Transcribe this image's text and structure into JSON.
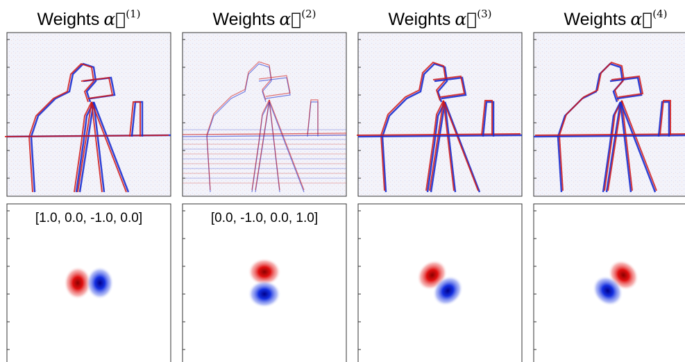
{
  "panels": [
    {
      "title": "Weights",
      "symbol": "α⃗",
      "superscript": "(1)",
      "annotation": "[1.0, 0.0, -1.0, 0.0]"
    },
    {
      "title": "Weights",
      "symbol": "α⃗",
      "superscript": "(2)",
      "annotation": "[0.0, -1.0, 0.0, 1.0]"
    },
    {
      "title": "Weights",
      "symbol": "α⃗",
      "superscript": "(3)"
    },
    {
      "title": "Weights",
      "symbol": "α⃗",
      "superscript": "(4)"
    }
  ]
}
